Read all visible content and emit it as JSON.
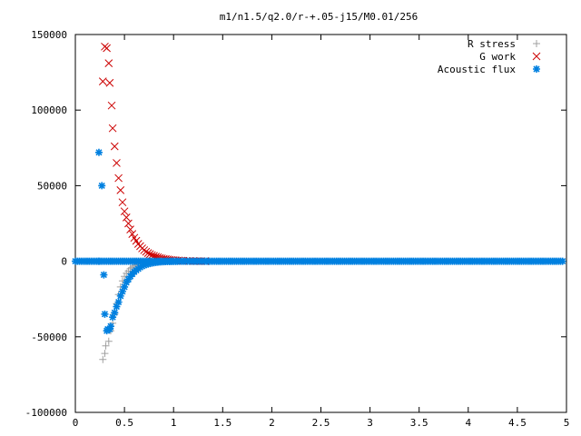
{
  "chart_data": {
    "type": "scatter",
    "title": "m1/n1.5/q2.0/r-+.05-j15/M0.01/256",
    "xlabel": "",
    "ylabel": "",
    "xlim": [
      0,
      5
    ],
    "ylim": [
      -100000,
      150000
    ],
    "x_ticks": [
      "0",
      "0.5",
      "1",
      "1.5",
      "2",
      "2.5",
      "3",
      "3.5",
      "4",
      "4.5",
      "5"
    ],
    "y_ticks": [
      "-100000",
      "-50000",
      "0",
      "50000",
      "100000",
      "150000"
    ],
    "legend_position": "top-right",
    "grid": false,
    "series": [
      {
        "name": "R stress",
        "marker": "plus",
        "color": "#a0a0a0",
        "points": [
          [
            0.28,
            -65000
          ],
          [
            0.3,
            -61000
          ],
          [
            0.31,
            -56000
          ],
          [
            0.34,
            -53000
          ],
          [
            0.36,
            -46000
          ],
          [
            0.38,
            -41000
          ],
          [
            0.4,
            -35000
          ],
          [
            0.42,
            -28000
          ],
          [
            0.44,
            -22000
          ],
          [
            0.46,
            -17000
          ],
          [
            0.48,
            -13000
          ],
          [
            0.5,
            -10000
          ],
          [
            0.52,
            -8000
          ],
          [
            0.54,
            -6500
          ],
          [
            0.56,
            -5000
          ],
          [
            0.58,
            -4000
          ],
          [
            0.6,
            -3200
          ],
          [
            0.62,
            -2500
          ],
          [
            0.64,
            -2000
          ],
          [
            0.66,
            -1600
          ],
          [
            0.68,
            -1300
          ],
          [
            0.7,
            -1000
          ],
          [
            0.72,
            -800
          ],
          [
            0.74,
            -600
          ],
          [
            0.76,
            -500
          ],
          [
            0.78,
            -400
          ],
          [
            0.8,
            -300
          ]
        ]
      },
      {
        "name": "G work",
        "marker": "cross",
        "color": "#cc0000",
        "points": [
          [
            0.28,
            119000
          ],
          [
            0.3,
            142000
          ],
          [
            0.32,
            141000
          ],
          [
            0.34,
            131000
          ],
          [
            0.35,
            118000
          ],
          [
            0.37,
            103000
          ],
          [
            0.38,
            88000
          ],
          [
            0.4,
            76000
          ],
          [
            0.42,
            65000
          ],
          [
            0.44,
            55000
          ],
          [
            0.46,
            47000
          ],
          [
            0.48,
            39000
          ],
          [
            0.5,
            33000
          ],
          [
            0.52,
            29000
          ],
          [
            0.54,
            25000
          ],
          [
            0.56,
            21000
          ],
          [
            0.58,
            18000
          ],
          [
            0.6,
            15500
          ],
          [
            0.62,
            13500
          ],
          [
            0.64,
            11500
          ],
          [
            0.66,
            10000
          ],
          [
            0.68,
            8500
          ],
          [
            0.7,
            7300
          ],
          [
            0.72,
            6300
          ],
          [
            0.74,
            5400
          ],
          [
            0.76,
            4700
          ],
          [
            0.78,
            4000
          ],
          [
            0.8,
            3500
          ],
          [
            0.82,
            3000
          ],
          [
            0.84,
            2600
          ],
          [
            0.86,
            2200
          ],
          [
            0.88,
            1900
          ],
          [
            0.9,
            1600
          ],
          [
            0.92,
            1400
          ],
          [
            0.94,
            1200
          ],
          [
            0.96,
            1000
          ],
          [
            0.98,
            850
          ],
          [
            1.0,
            700
          ],
          [
            1.02,
            600
          ],
          [
            1.05,
            500
          ],
          [
            1.08,
            400
          ],
          [
            1.1,
            300
          ],
          [
            1.13,
            250
          ],
          [
            1.16,
            200
          ],
          [
            1.2,
            150
          ],
          [
            1.24,
            100
          ],
          [
            1.28,
            80
          ],
          [
            1.32,
            50
          ]
        ]
      },
      {
        "name": "Acoustic flux",
        "marker": "star",
        "color": "#0080e0",
        "points": [
          [
            0.24,
            72000
          ],
          [
            0.27,
            50000
          ],
          [
            0.29,
            -9000
          ],
          [
            0.3,
            -35000
          ],
          [
            0.32,
            -46000
          ],
          [
            0.33,
            -45000
          ],
          [
            0.35,
            -45000
          ],
          [
            0.36,
            -43000
          ],
          [
            0.38,
            -37000
          ],
          [
            0.4,
            -34000
          ],
          [
            0.42,
            -30000
          ],
          [
            0.44,
            -27000
          ],
          [
            0.46,
            -23000
          ],
          [
            0.48,
            -20000
          ],
          [
            0.5,
            -17000
          ],
          [
            0.52,
            -14000
          ],
          [
            0.54,
            -12000
          ],
          [
            0.56,
            -10000
          ],
          [
            0.58,
            -8500
          ],
          [
            0.6,
            -7000
          ],
          [
            0.62,
            -6000
          ],
          [
            0.64,
            -5000
          ],
          [
            0.66,
            -4000
          ],
          [
            0.68,
            -3300
          ],
          [
            0.7,
            -2700
          ],
          [
            0.72,
            -2200
          ],
          [
            0.74,
            -1800
          ],
          [
            0.76,
            -1500
          ],
          [
            0.78,
            -1200
          ],
          [
            0.8,
            -1000
          ],
          [
            0.82,
            -800
          ],
          [
            0.84,
            -650
          ],
          [
            0.86,
            -500
          ],
          [
            0.88,
            -400
          ],
          [
            0.9,
            -300
          ],
          [
            0.92,
            -250
          ],
          [
            0.94,
            -200
          ],
          [
            0.96,
            -150
          ],
          [
            0.98,
            -100
          ],
          [
            1.0,
            -80
          ],
          [
            1.02,
            -60
          ],
          [
            1.04,
            -40
          ]
        ]
      }
    ],
    "zero_line": {
      "x_start": 0,
      "x_end": 4.96,
      "x_step": 0.02,
      "gap_start": 0.24,
      "gap_end": 1.36,
      "color": "#0080e0"
    }
  }
}
